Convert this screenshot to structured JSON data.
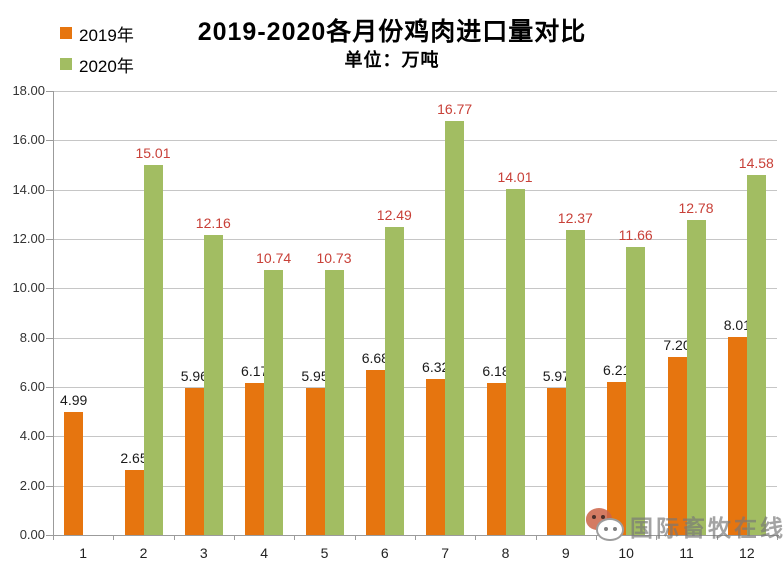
{
  "header": {
    "title": "2019-2020各月份鸡肉进口量对比",
    "subtitle": "单位：万吨"
  },
  "legend": {
    "items": [
      {
        "label": "2019年",
        "color": "#e6750f"
      },
      {
        "label": "2020年",
        "color": "#a2bd62"
      }
    ]
  },
  "watermark": {
    "text": "国际畜牧在线",
    "icon": "wechat-icon"
  },
  "chart_data": {
    "type": "bar",
    "categories": [
      "1",
      "2",
      "3",
      "4",
      "5",
      "6",
      "7",
      "8",
      "9",
      "10",
      "11",
      "12"
    ],
    "series": [
      {
        "name": "2019年",
        "color": "#e6750f",
        "label_color": "#1a1a1a",
        "values": [
          4.99,
          2.65,
          5.96,
          6.17,
          5.95,
          6.68,
          6.32,
          6.18,
          5.97,
          6.21,
          7.2,
          8.01
        ]
      },
      {
        "name": "2020年",
        "color": "#a2bd62",
        "label_color": "#c84038",
        "values": [
          null,
          15.01,
          12.16,
          10.74,
          10.73,
          12.49,
          16.77,
          14.01,
          12.37,
          11.66,
          12.78,
          14.58
        ]
      }
    ],
    "ylim": [
      0,
      18
    ],
    "ytick_step": 2,
    "yticks": [
      "0.00",
      "2.00",
      "4.00",
      "6.00",
      "8.00",
      "10.00",
      "12.00",
      "14.00",
      "16.00",
      "18.00"
    ],
    "grid": true,
    "legend_position": "top-left",
    "gridline_color": "#c6c6c6",
    "axis_color": "#9b9b9b",
    "value_label_decimals": 2
  }
}
